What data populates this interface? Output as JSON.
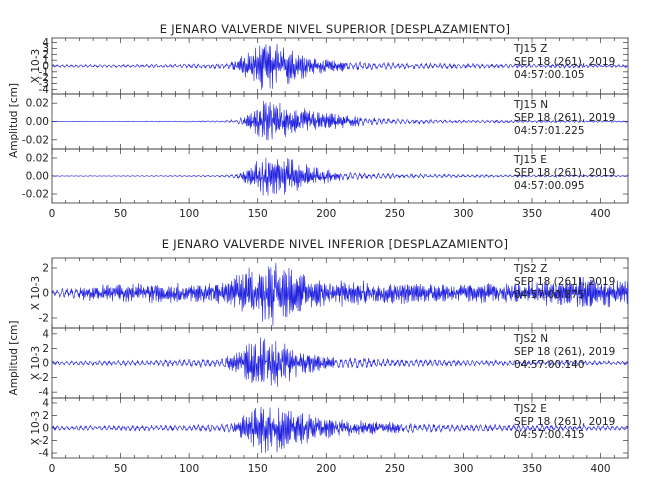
{
  "chart_data": [
    {
      "type": "line",
      "title": "E JENARO VALVERDE NIVEL SUPERIOR [DESPLAZAMIENTO]",
      "ylabel": "Amplitud [cm]",
      "xlim": [
        0,
        420
      ],
      "xticks": [
        "0",
        "50",
        "100",
        "150",
        "200",
        "250",
        "300",
        "350",
        "400"
      ],
      "panels": [
        {
          "station": "TJ15",
          "component": "Z",
          "date": "SEP 18 (261), 2019",
          "time": "04:57:00.105",
          "ylabel": "X 10-3",
          "ylim": [
            -4.8,
            4.8
          ],
          "yticks": [
            "4",
            "3",
            "2",
            "1",
            "0",
            "-1",
            "-2",
            "-3",
            "-4"
          ],
          "series": [
            {
              "x": [
                0,
                50,
                100,
                125,
                135,
                145,
                155,
                165,
                175,
                185,
                195,
                210,
                230,
                260,
                300,
                340,
                380,
                420
              ],
              "envelope": [
                0.3,
                0.3,
                0.4,
                0.6,
                1.2,
                3.0,
                4.6,
                4.2,
                3.2,
                2.2,
                1.4,
                1.0,
                0.8,
                0.6,
                0.5,
                0.4,
                0.4,
                0.3
              ],
              "color": "#1f1fe0"
            }
          ]
        },
        {
          "station": "TJ15",
          "component": "N",
          "date": "SEP 18 (261), 2019",
          "time": "04:57:01.225",
          "ylabel": "",
          "ylim": [
            -0.03,
            0.03
          ],
          "yticks": [
            "0.02",
            "0.00",
            "-0.02"
          ],
          "series": [
            {
              "x": [
                0,
                50,
                100,
                125,
                135,
                145,
                155,
                165,
                175,
                185,
                195,
                210,
                230,
                260,
                300,
                340,
                380,
                420
              ],
              "envelope": [
                0.0004,
                0.0005,
                0.0007,
                0.001,
                0.003,
                0.01,
                0.027,
                0.022,
                0.017,
                0.015,
                0.013,
                0.008,
                0.005,
                0.003,
                0.002,
                0.0015,
                0.0012,
                0.001
              ],
              "color": "#1f1fe0"
            }
          ]
        },
        {
          "station": "TJ15",
          "component": "E",
          "date": "SEP 18 (261), 2019",
          "time": "04:57:00.095",
          "ylabel": "",
          "ylim": [
            -0.03,
            0.03
          ],
          "yticks": [
            "0.02",
            "0.00",
            "-0.02"
          ],
          "series": [
            {
              "x": [
                0,
                50,
                100,
                125,
                135,
                145,
                155,
                165,
                175,
                185,
                195,
                210,
                230,
                260,
                300,
                340,
                380,
                420
              ],
              "envelope": [
                0.0004,
                0.0005,
                0.0008,
                0.0012,
                0.004,
                0.012,
                0.024,
                0.027,
                0.02,
                0.014,
                0.01,
                0.006,
                0.004,
                0.003,
                0.002,
                0.0015,
                0.0012,
                0.001
              ],
              "color": "#1f1fe0"
            }
          ]
        }
      ]
    },
    {
      "type": "line",
      "title": "E JENARO VALVERDE NIVEL INFERIOR [DESPLAZAMIENTO]",
      "ylabel": "Amplitud [cm]",
      "xlim": [
        0,
        420
      ],
      "xticks": [
        "0",
        "50",
        "100",
        "150",
        "200",
        "250",
        "300",
        "350",
        "400"
      ],
      "panels": [
        {
          "station": "TJS2",
          "component": "Z",
          "date": "SEP 18 (261), 2019",
          "time": "04:57:00.875",
          "ylabel": "X 10-3",
          "ylim": [
            -2.8,
            2.8
          ],
          "yticks": [
            "2",
            "0",
            "-2"
          ],
          "series": [
            {
              "x": [
                0,
                30,
                60,
                100,
                125,
                135,
                145,
                155,
                165,
                175,
                185,
                200,
                230,
                260,
                300,
                340,
                370,
                390,
                420
              ],
              "envelope": [
                0.3,
                0.7,
                0.9,
                0.8,
                1.0,
                1.5,
                2.3,
                2.7,
                2.6,
                2.0,
                1.5,
                1.2,
                1.0,
                0.9,
                0.8,
                0.9,
                1.2,
                1.4,
                1.0
              ],
              "color": "#1f1fe0"
            }
          ]
        },
        {
          "station": "TJS2",
          "component": "N",
          "date": "SEP 18 (261), 2019",
          "time": "04:57:00.140",
          "ylabel": "X 10-3",
          "ylim": [
            -4.8,
            4.8
          ],
          "yticks": [
            "4",
            "2",
            "0",
            "-2",
            "-4"
          ],
          "series": [
            {
              "x": [
                0,
                50,
                100,
                125,
                135,
                145,
                155,
                165,
                175,
                185,
                200,
                230,
                260,
                300,
                340,
                380,
                420
              ],
              "envelope": [
                0.3,
                0.4,
                0.6,
                0.8,
                1.5,
                3.0,
                4.5,
                3.5,
                2.4,
                1.6,
                1.0,
                0.8,
                0.6,
                0.5,
                0.4,
                0.4,
                0.3
              ],
              "color": "#1f1fe0"
            }
          ]
        },
        {
          "station": "TJS2",
          "component": "E",
          "date": "SEP 18 (261), 2019",
          "time": "04:57:00.415",
          "ylabel": "X 10-3",
          "ylim": [
            -4.8,
            4.8
          ],
          "yticks": [
            "4",
            "2",
            "0",
            "-2",
            "-4"
          ],
          "series": [
            {
              "x": [
                0,
                50,
                100,
                125,
                135,
                145,
                155,
                165,
                175,
                185,
                200,
                230,
                260,
                300,
                340,
                380,
                420
              ],
              "envelope": [
                0.4,
                0.5,
                0.6,
                0.8,
                1.0,
                3.2,
                4.6,
                4.0,
                3.2,
                2.5,
                1.8,
                1.2,
                0.9,
                0.7,
                0.6,
                0.5,
                0.4
              ],
              "color": "#1f1fe0"
            }
          ]
        }
      ]
    }
  ]
}
